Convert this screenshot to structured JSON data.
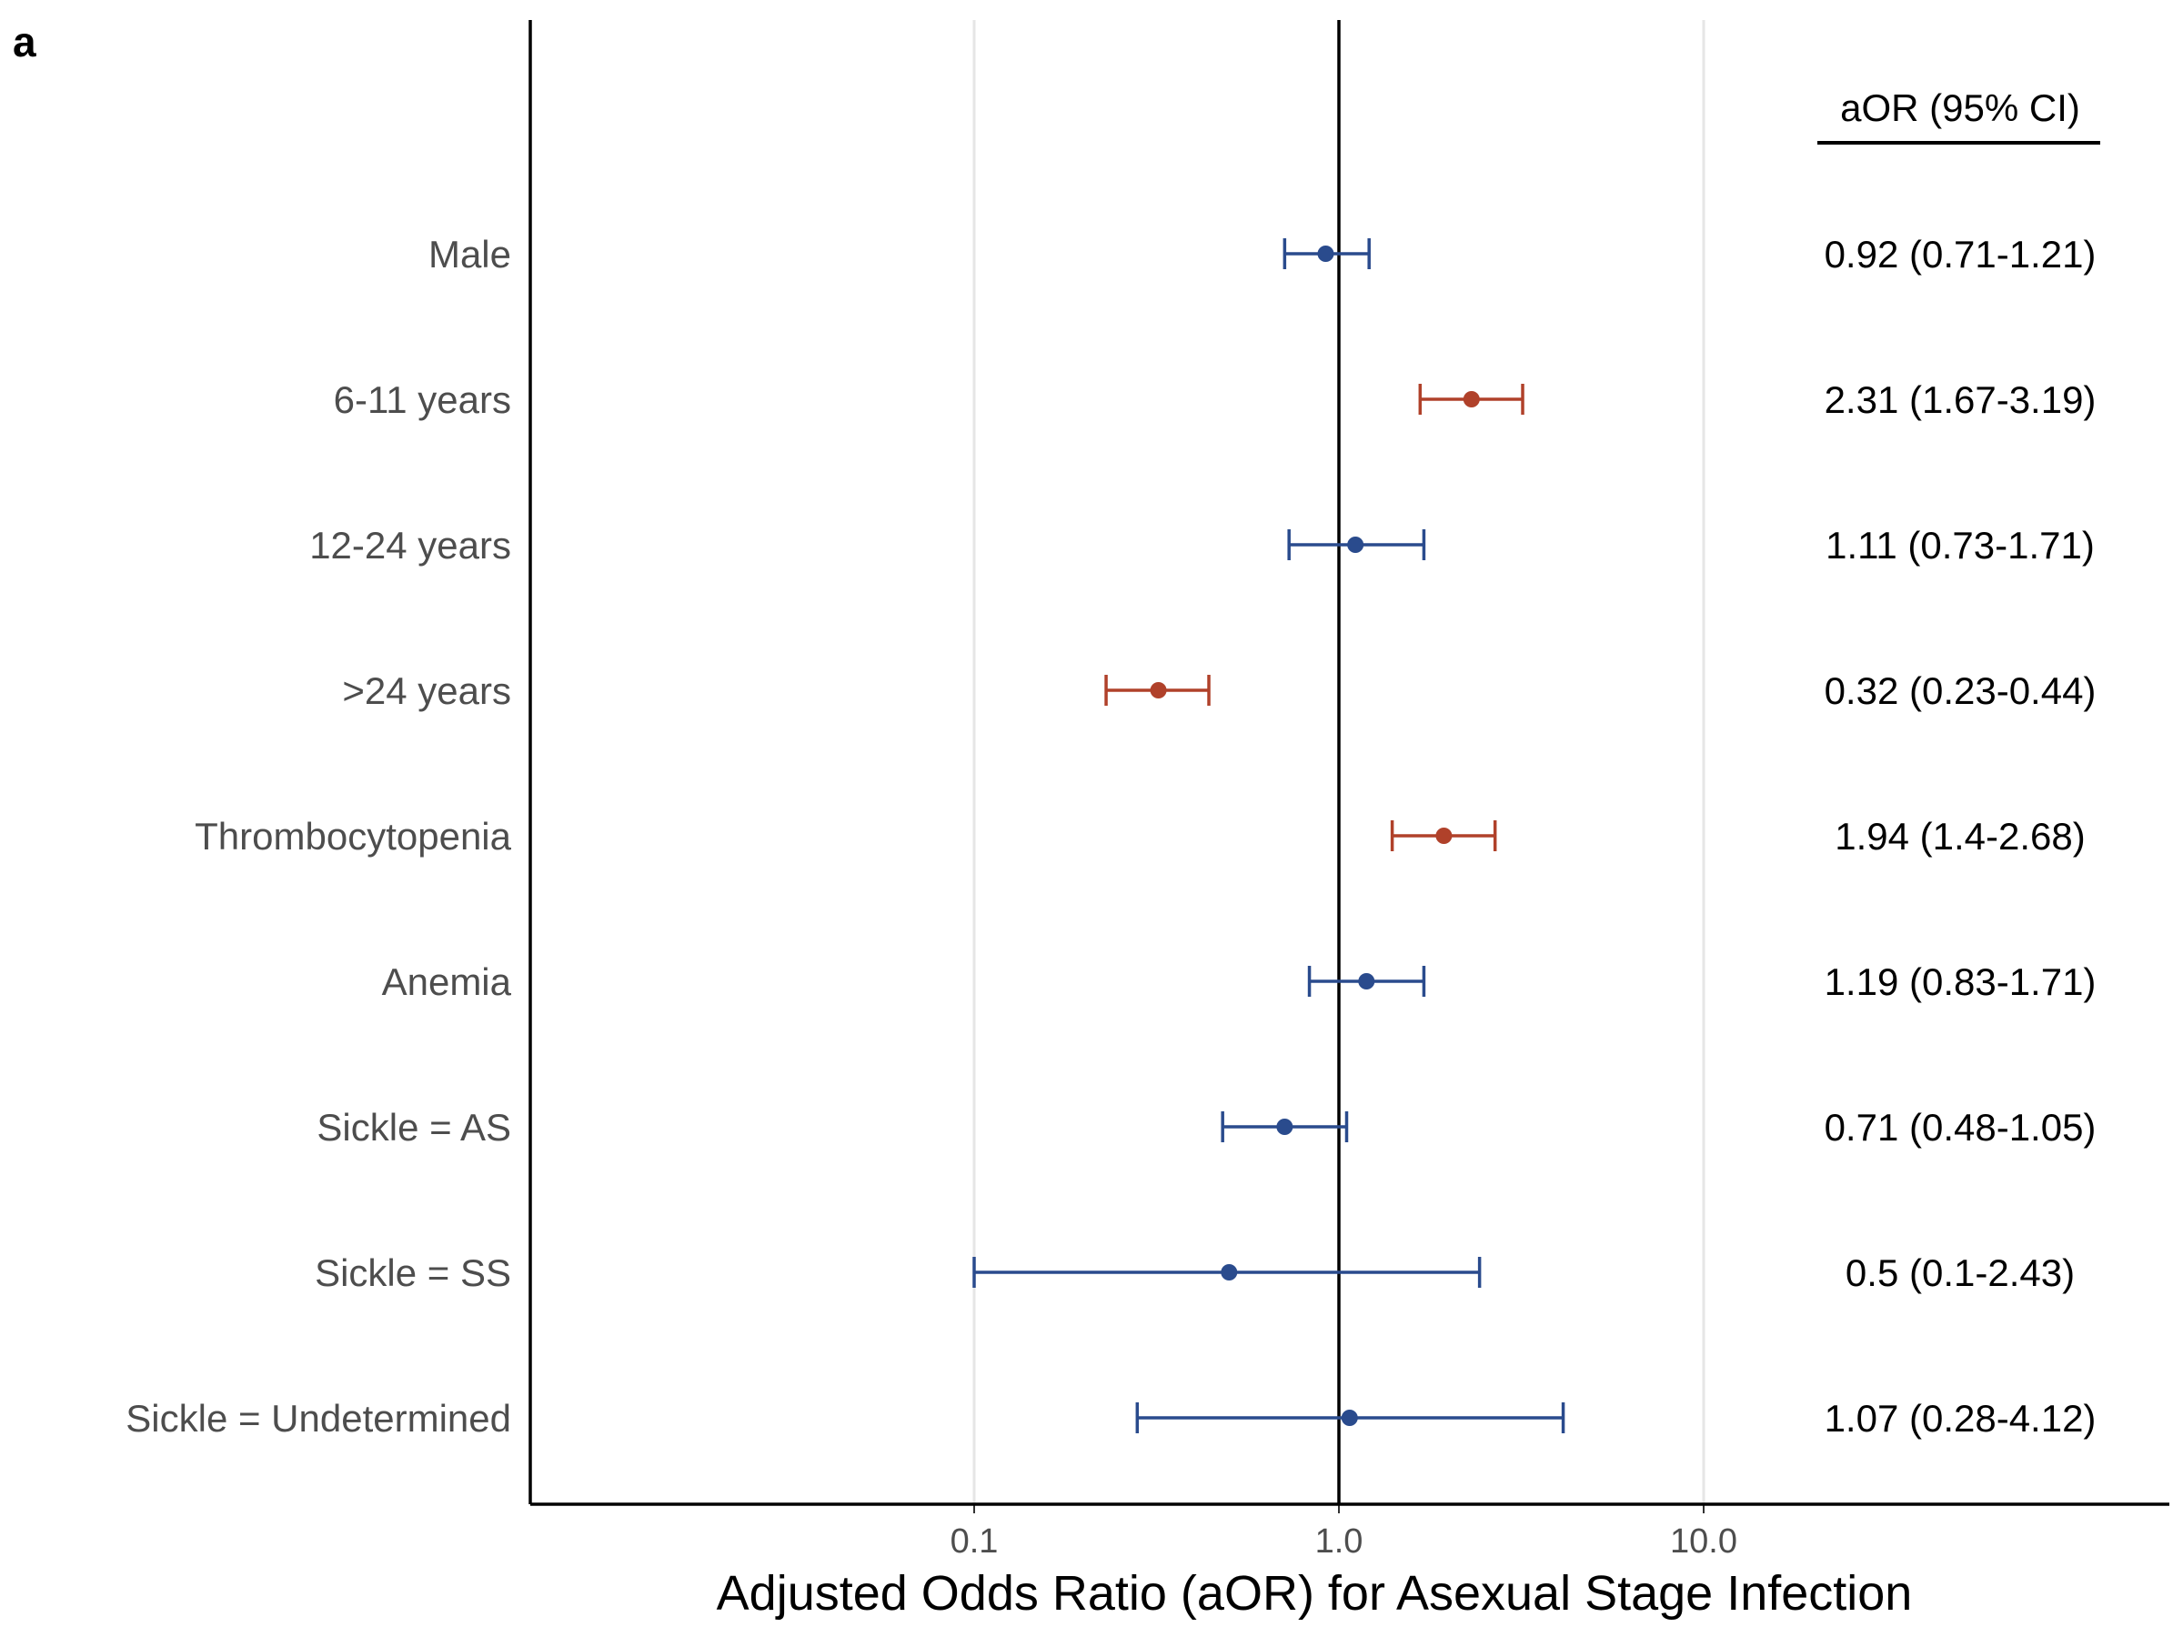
{
  "panel_label": "a",
  "chart_data": {
    "type": "forest",
    "xlabel": "Adjusted Odds Ratio (aOR) for Asexual Stage Infection",
    "x_scale": "log10",
    "xlim": [
      0.0235,
      27
    ],
    "x_ticks": [
      0.1,
      1.0,
      10.0
    ],
    "x_tick_labels": [
      "0.1",
      "1.0",
      "10.0"
    ],
    "reference_line": 1.0,
    "grid": "vertical major gridlines",
    "ci_column_header": "aOR (95% CI)",
    "colors": {
      "significant": "#b0412a",
      "nonsignificant": "#2a4b8d"
    },
    "rows": [
      {
        "label": "Male",
        "aor": 0.92,
        "lower": 0.71,
        "upper": 1.21,
        "text": "0.92 (0.71-1.21)",
        "significant": false
      },
      {
        "label": "6-11 years",
        "aor": 2.31,
        "lower": 1.67,
        "upper": 3.19,
        "text": "2.31 (1.67-3.19)",
        "significant": true
      },
      {
        "label": "12-24 years",
        "aor": 1.11,
        "lower": 0.73,
        "upper": 1.71,
        "text": "1.11 (0.73-1.71)",
        "significant": false
      },
      {
        "label": ">24 years",
        "aor": 0.32,
        "lower": 0.23,
        "upper": 0.44,
        "text": "0.32 (0.23-0.44)",
        "significant": true
      },
      {
        "label": "Thrombocytopenia",
        "aor": 1.94,
        "lower": 1.4,
        "upper": 2.68,
        "text": "1.94 (1.4-2.68)",
        "significant": true
      },
      {
        "label": "Anemia",
        "aor": 1.19,
        "lower": 0.83,
        "upper": 1.71,
        "text": "1.19 (0.83-1.71)",
        "significant": false
      },
      {
        "label": "Sickle = AS",
        "aor": 0.71,
        "lower": 0.48,
        "upper": 1.05,
        "text": "0.71 (0.48-1.05)",
        "significant": false
      },
      {
        "label": "Sickle = SS",
        "aor": 0.5,
        "lower": 0.1,
        "upper": 2.43,
        "text": "0.5 (0.1-2.43)",
        "significant": false
      },
      {
        "label": "Sickle = Undetermined",
        "aor": 1.07,
        "lower": 0.28,
        "upper": 4.12,
        "text": "1.07 (0.28-4.12)",
        "significant": false
      }
    ]
  }
}
